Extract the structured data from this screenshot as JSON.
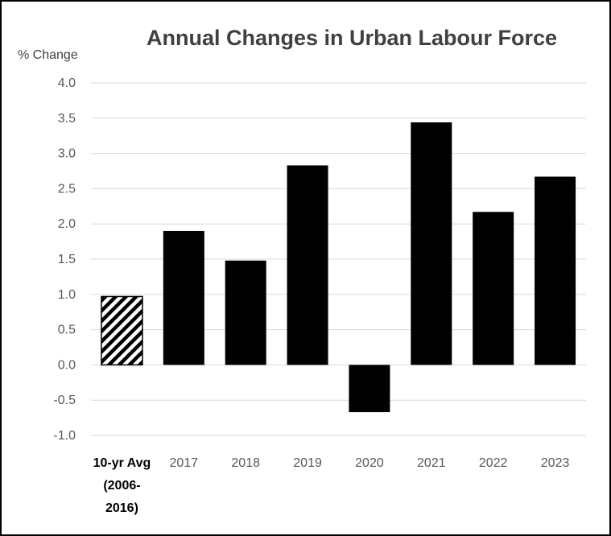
{
  "chart_data": {
    "type": "bar",
    "title": "Annual Changes in Urban Labour Force",
    "ylabel": "% Change",
    "xlabel": "",
    "ylim": [
      -1.0,
      4.0
    ],
    "yticks": [
      "4.0",
      "3.5",
      "3.0",
      "2.5",
      "2.0",
      "1.5",
      "1.0",
      "0.5",
      "0.0",
      "-0.5",
      "-1.0"
    ],
    "grid": true,
    "legend": "none",
    "categories": [
      [
        "10-yr Avg",
        "(2006-",
        "2016)"
      ],
      [
        "2017"
      ],
      [
        "2018"
      ],
      [
        "2019"
      ],
      [
        "2020"
      ],
      [
        "2021"
      ],
      [
        "2022"
      ],
      [
        "2023"
      ]
    ],
    "values": [
      0.97,
      1.9,
      1.48,
      2.83,
      -0.67,
      3.44,
      2.17,
      2.67
    ],
    "bar_styles": [
      "hatched",
      "solid",
      "solid",
      "solid",
      "solid",
      "solid",
      "solid",
      "solid"
    ],
    "colors": {
      "bar": "#000000",
      "grid": "#d9d9d9",
      "title": "#404040",
      "tick": "#595959"
    }
  }
}
